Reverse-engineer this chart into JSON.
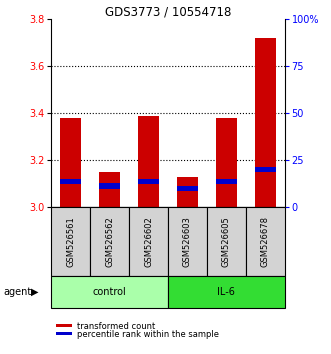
{
  "title": "GDS3773 / 10554718",
  "samples": [
    "GSM526561",
    "GSM526562",
    "GSM526602",
    "GSM526603",
    "GSM526605",
    "GSM526678"
  ],
  "red_values": [
    3.38,
    3.15,
    3.39,
    3.13,
    3.38,
    3.72
  ],
  "blue_values": [
    3.11,
    3.09,
    3.11,
    3.08,
    3.11,
    3.16
  ],
  "y_min": 3.0,
  "y_max": 3.8,
  "y_ticks": [
    3.0,
    3.2,
    3.4,
    3.6,
    3.8
  ],
  "right_y_ticks": [
    0,
    25,
    50,
    75,
    100
  ],
  "right_y_labels": [
    "0",
    "25",
    "50",
    "75",
    "100%"
  ],
  "bar_width": 0.55,
  "blue_bar_height": 0.022,
  "control_color": "#aaffaa",
  "il6_color": "#33dd33",
  "red_bar_color": "#cc0000",
  "blue_bar_color": "#0000cc",
  "group_label_control": "control",
  "group_label_il6": "IL-6",
  "legend_label_red": "transformed count",
  "legend_label_blue": "percentile rank within the sample",
  "agent_label": "agent",
  "title_fontsize": 8.5,
  "tick_fontsize": 7,
  "label_fontsize": 6,
  "agent_fontsize": 7,
  "legend_fontsize": 6
}
